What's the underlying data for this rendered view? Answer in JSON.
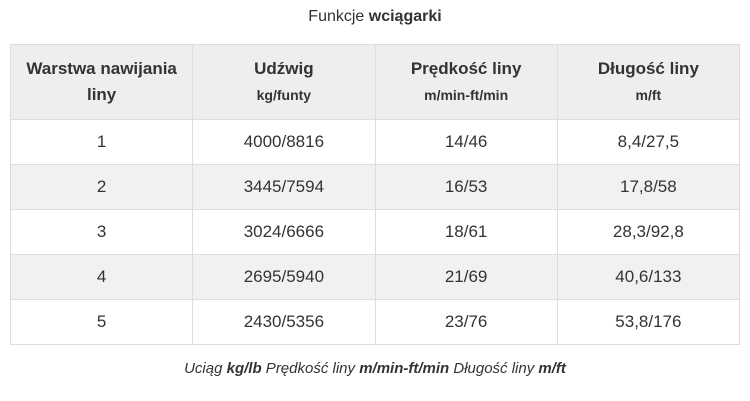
{
  "title": {
    "normal": "Funkcje ",
    "bold": "wciągarki"
  },
  "table": {
    "columns": [
      {
        "label": "Warstwa nawijania liny",
        "unit": ""
      },
      {
        "label": "Udźwig",
        "unit": "kg/funty"
      },
      {
        "label": "Prędkość liny",
        "unit": "m/min-ft/min"
      },
      {
        "label": "Długość liny",
        "unit": "m/ft"
      }
    ],
    "rows": [
      [
        "1",
        "4000/8816",
        "14/46",
        "8,4/27,5"
      ],
      [
        "2",
        "3445/7594",
        "16/53",
        "17,8/58"
      ],
      [
        "3",
        "3024/6666",
        "18/61",
        "28,3/92,8"
      ],
      [
        "4",
        "2695/5940",
        "21/69",
        "40,6/133"
      ],
      [
        "5",
        "2430/5356",
        "23/76",
        "53,8/176"
      ]
    ]
  },
  "footer": {
    "segments": [
      {
        "text": "Uciąg ",
        "bold": false
      },
      {
        "text": "kg/lb",
        "bold": true
      },
      {
        "text": " Prędkość liny ",
        "bold": false
      },
      {
        "text": "m/min-ft/min",
        "bold": true
      },
      {
        "text": " Długość liny ",
        "bold": false
      },
      {
        "text": "m/ft",
        "bold": true
      }
    ]
  },
  "colors": {
    "header_bg": "#eeeeee",
    "stripe_bg": "#f1f1f1",
    "border": "#dddddd",
    "text": "#333333"
  }
}
